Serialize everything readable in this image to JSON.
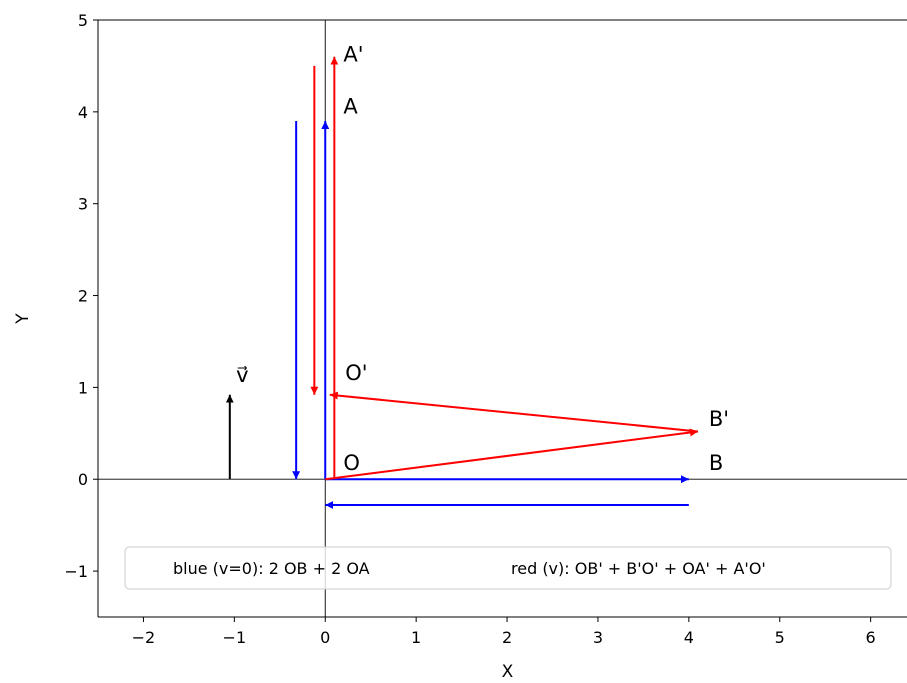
{
  "chart_data": {
    "type": "vector-diagram",
    "title": "",
    "xlabel": "X",
    "ylabel": "Y",
    "xlim": [
      -2.5,
      6.4
    ],
    "ylim": [
      -1.5,
      5
    ],
    "xticks": [
      -2,
      -1,
      0,
      1,
      2,
      3,
      4,
      5,
      6
    ],
    "yticks": [
      -1,
      0,
      1,
      2,
      3,
      4,
      5
    ],
    "grid": false,
    "reference_lines": {
      "x": 0,
      "y": 0
    },
    "colors": {
      "blue": "#0000ff",
      "red": "#ff0000",
      "black": "#000000",
      "axisline": "#000000"
    },
    "vectors": [
      {
        "id": "blue-OB",
        "color": "blue",
        "from": [
          0,
          0
        ],
        "to": [
          4,
          0
        ]
      },
      {
        "id": "blue-BO",
        "color": "blue",
        "from": [
          4,
          -0.28
        ],
        "to": [
          0,
          -0.28
        ]
      },
      {
        "id": "blue-OA",
        "color": "blue",
        "from": [
          0,
          0
        ],
        "to": [
          0,
          3.9
        ]
      },
      {
        "id": "blue-AO",
        "color": "blue",
        "from": [
          -0.32,
          3.9
        ],
        "to": [
          -0.32,
          0
        ]
      },
      {
        "id": "red-OBp",
        "color": "red",
        "from": [
          0,
          0
        ],
        "to": [
          4.1,
          0.52
        ]
      },
      {
        "id": "red-BpOp",
        "color": "red",
        "from": [
          4.1,
          0.52
        ],
        "to": [
          0.05,
          0.92
        ]
      },
      {
        "id": "red-OpAp",
        "color": "red",
        "from": [
          0.1,
          0
        ],
        "to": [
          0.1,
          4.6
        ]
      },
      {
        "id": "red-ApOp",
        "color": "red",
        "from": [
          -0.12,
          4.5
        ],
        "to": [
          -0.12,
          0.92
        ]
      },
      {
        "id": "velocity-v",
        "color": "black",
        "from": [
          -1.05,
          0
        ],
        "to": [
          -1.05,
          0.92
        ]
      }
    ],
    "point_labels": [
      {
        "text": "A'",
        "x": 0.2,
        "y": 4.55
      },
      {
        "text": "A",
        "x": 0.2,
        "y": 3.98
      },
      {
        "text": "O'",
        "x": 0.22,
        "y": 1.08
      },
      {
        "text": "B'",
        "x": 4.22,
        "y": 0.58
      },
      {
        "text": "B",
        "x": 4.22,
        "y": 0.1
      },
      {
        "text": "O",
        "x": 0.2,
        "y": 0.1
      },
      {
        "text": "v⃗",
        "x": -0.98,
        "y": 1.06
      }
    ],
    "legend": {
      "placement": "lower-center",
      "entries": [
        "blue (v=0): 2 OB + 2 OA",
        "red (v): OB' + B'O' + OA' + A'O'"
      ]
    }
  }
}
